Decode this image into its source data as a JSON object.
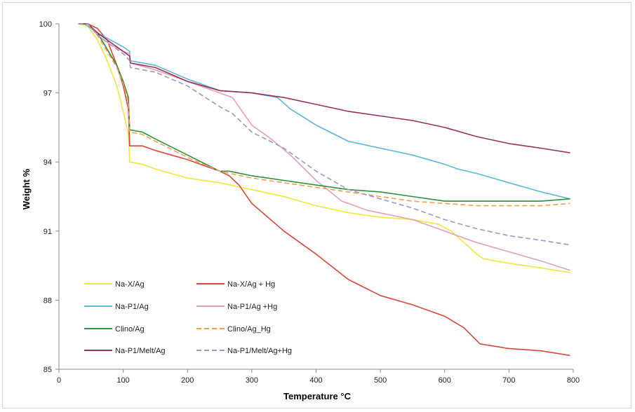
{
  "chart_data": {
    "type": "line",
    "title": "",
    "xlabel": "Temperature °C",
    "ylabel": "Weight %",
    "xlim": [
      0,
      800
    ],
    "ylim": [
      85,
      100
    ],
    "xticks": [
      0,
      100,
      200,
      300,
      400,
      500,
      600,
      700,
      800
    ],
    "yticks": [
      85,
      88,
      91,
      94,
      97,
      100
    ],
    "ytick_labels": [
      "85",
      "88",
      "91",
      "94",
      "97",
      "100"
    ],
    "grid": false,
    "legend_position": "bottom-left inside",
    "series": [
      {
        "name": "Na-X/Ag",
        "color": "#f0e63c",
        "dash": "solid",
        "points": [
          [
            30,
            100
          ],
          [
            45,
            99.9
          ],
          [
            60,
            99.3
          ],
          [
            75,
            98.4
          ],
          [
            90,
            97.3
          ],
          [
            100,
            96.2
          ],
          [
            108,
            95.2
          ],
          [
            110,
            94
          ],
          [
            130,
            93.9
          ],
          [
            150,
            93.7
          ],
          [
            200,
            93.3
          ],
          [
            250,
            93.1
          ],
          [
            300,
            92.8
          ],
          [
            350,
            92.5
          ],
          [
            400,
            92.1
          ],
          [
            450,
            91.8
          ],
          [
            500,
            91.6
          ],
          [
            550,
            91.5
          ],
          [
            590,
            91.3
          ],
          [
            610,
            91
          ],
          [
            630,
            90.5
          ],
          [
            650,
            90
          ],
          [
            660,
            89.8
          ],
          [
            700,
            89.6
          ],
          [
            750,
            89.4
          ],
          [
            795,
            89.2
          ]
        ]
      },
      {
        "name": "Na-X/Ag + Hg",
        "color": "#d9473a",
        "dash": "solid",
        "points": [
          [
            30,
            100
          ],
          [
            45,
            100
          ],
          [
            60,
            99.8
          ],
          [
            75,
            99.3
          ],
          [
            90,
            98.2
          ],
          [
            100,
            97.3
          ],
          [
            108,
            96.3
          ],
          [
            110,
            94.7
          ],
          [
            130,
            94.7
          ],
          [
            150,
            94.5
          ],
          [
            200,
            94.1
          ],
          [
            250,
            93.6
          ],
          [
            265,
            93.4
          ],
          [
            280,
            93
          ],
          [
            300,
            92.2
          ],
          [
            350,
            91
          ],
          [
            400,
            90
          ],
          [
            450,
            88.9
          ],
          [
            500,
            88.2
          ],
          [
            550,
            87.8
          ],
          [
            600,
            87.3
          ],
          [
            630,
            86.8
          ],
          [
            655,
            86.1
          ],
          [
            700,
            85.9
          ],
          [
            750,
            85.8
          ],
          [
            795,
            85.6
          ]
        ]
      },
      {
        "name": "Na-P1/Ag",
        "color": "#5bb8d9",
        "dash": "solid",
        "points": [
          [
            30,
            100
          ],
          [
            40,
            100
          ],
          [
            60,
            99.6
          ],
          [
            80,
            99.3
          ],
          [
            100,
            99
          ],
          [
            110,
            98.8
          ],
          [
            111,
            98.4
          ],
          [
            150,
            98.2
          ],
          [
            200,
            97.6
          ],
          [
            250,
            97.1
          ],
          [
            300,
            97
          ],
          [
            340,
            96.8
          ],
          [
            360,
            96.3
          ],
          [
            400,
            95.6
          ],
          [
            450,
            94.9
          ],
          [
            500,
            94.6
          ],
          [
            550,
            94.3
          ],
          [
            600,
            93.9
          ],
          [
            620,
            93.7
          ],
          [
            650,
            93.5
          ],
          [
            700,
            93.1
          ],
          [
            750,
            92.7
          ],
          [
            795,
            92.4
          ]
        ]
      },
      {
        "name": "Na-P1/Ag +Hg",
        "color": "#e6a0b4",
        "dash": "solid",
        "points": [
          [
            30,
            100
          ],
          [
            45,
            100
          ],
          [
            60,
            99.5
          ],
          [
            80,
            99.1
          ],
          [
            100,
            98.8
          ],
          [
            110,
            98.7
          ],
          [
            111,
            98.3
          ],
          [
            150,
            98
          ],
          [
            200,
            97.5
          ],
          [
            250,
            97
          ],
          [
            270,
            96.8
          ],
          [
            285,
            96.2
          ],
          [
            300,
            95.6
          ],
          [
            330,
            95
          ],
          [
            360,
            94.3
          ],
          [
            400,
            93.2
          ],
          [
            440,
            92.3
          ],
          [
            480,
            91.9
          ],
          [
            550,
            91.5
          ],
          [
            600,
            91
          ],
          [
            650,
            90.5
          ],
          [
            700,
            90.1
          ],
          [
            750,
            89.7
          ],
          [
            795,
            89.3
          ]
        ]
      },
      {
        "name": "Clino/Ag",
        "color": "#2e8f3e",
        "dash": "solid",
        "points": [
          [
            30,
            100
          ],
          [
            45,
            100
          ],
          [
            60,
            99.6
          ],
          [
            75,
            98.9
          ],
          [
            90,
            98.2
          ],
          [
            100,
            97.5
          ],
          [
            108,
            96.8
          ],
          [
            110,
            95.4
          ],
          [
            130,
            95.3
          ],
          [
            150,
            95
          ],
          [
            200,
            94.3
          ],
          [
            250,
            93.6
          ],
          [
            265,
            93.6
          ],
          [
            300,
            93.4
          ],
          [
            350,
            93.2
          ],
          [
            400,
            93
          ],
          [
            450,
            92.8
          ],
          [
            500,
            92.7
          ],
          [
            550,
            92.5
          ],
          [
            600,
            92.3
          ],
          [
            650,
            92.3
          ],
          [
            700,
            92.3
          ],
          [
            750,
            92.3
          ],
          [
            795,
            92.4
          ]
        ]
      },
      {
        "name": "Clino/Ag_Hg",
        "color": "#f0a050",
        "dash": "dashed",
        "points": [
          [
            30,
            100
          ],
          [
            45,
            100
          ],
          [
            60,
            99.5
          ],
          [
            75,
            98.8
          ],
          [
            90,
            98.1
          ],
          [
            100,
            97.4
          ],
          [
            108,
            96.6
          ],
          [
            110,
            95.3
          ],
          [
            130,
            95.2
          ],
          [
            150,
            94.9
          ],
          [
            200,
            94.2
          ],
          [
            250,
            93.6
          ],
          [
            300,
            93.3
          ],
          [
            350,
            93.1
          ],
          [
            400,
            92.9
          ],
          [
            450,
            92.7
          ],
          [
            500,
            92.5
          ],
          [
            550,
            92.3
          ],
          [
            600,
            92.2
          ],
          [
            650,
            92.1
          ],
          [
            700,
            92.1
          ],
          [
            750,
            92.1
          ],
          [
            795,
            92.2
          ]
        ]
      },
      {
        "name": "Na-P1/Melt/Ag",
        "color": "#9a2f60",
        "dash": "solid",
        "points": [
          [
            30,
            100
          ],
          [
            45,
            100
          ],
          [
            60,
            99.6
          ],
          [
            80,
            99.2
          ],
          [
            100,
            98.8
          ],
          [
            110,
            98.6
          ],
          [
            111,
            98.3
          ],
          [
            150,
            98.1
          ],
          [
            200,
            97.5
          ],
          [
            250,
            97.1
          ],
          [
            300,
            97
          ],
          [
            350,
            96.8
          ],
          [
            400,
            96.5
          ],
          [
            450,
            96.2
          ],
          [
            500,
            96
          ],
          [
            550,
            95.8
          ],
          [
            600,
            95.5
          ],
          [
            650,
            95.1
          ],
          [
            700,
            94.8
          ],
          [
            750,
            94.6
          ],
          [
            795,
            94.4
          ]
        ]
      },
      {
        "name": "Na-P1/Melt/Ag+Hg",
        "color": "#9c98cc",
        "dash": "dashed",
        "points": [
          [
            30,
            100
          ],
          [
            45,
            100
          ],
          [
            60,
            99.5
          ],
          [
            80,
            99.1
          ],
          [
            100,
            98.7
          ],
          [
            110,
            98.4
          ],
          [
            111,
            98.1
          ],
          [
            150,
            97.9
          ],
          [
            200,
            97.3
          ],
          [
            250,
            96.4
          ],
          [
            270,
            96.1
          ],
          [
            300,
            95.3
          ],
          [
            350,
            94.6
          ],
          [
            400,
            93.6
          ],
          [
            450,
            92.8
          ],
          [
            500,
            92.4
          ],
          [
            550,
            92
          ],
          [
            600,
            91.5
          ],
          [
            650,
            91.1
          ],
          [
            700,
            90.8
          ],
          [
            750,
            90.6
          ],
          [
            795,
            90.4
          ]
        ]
      }
    ]
  }
}
